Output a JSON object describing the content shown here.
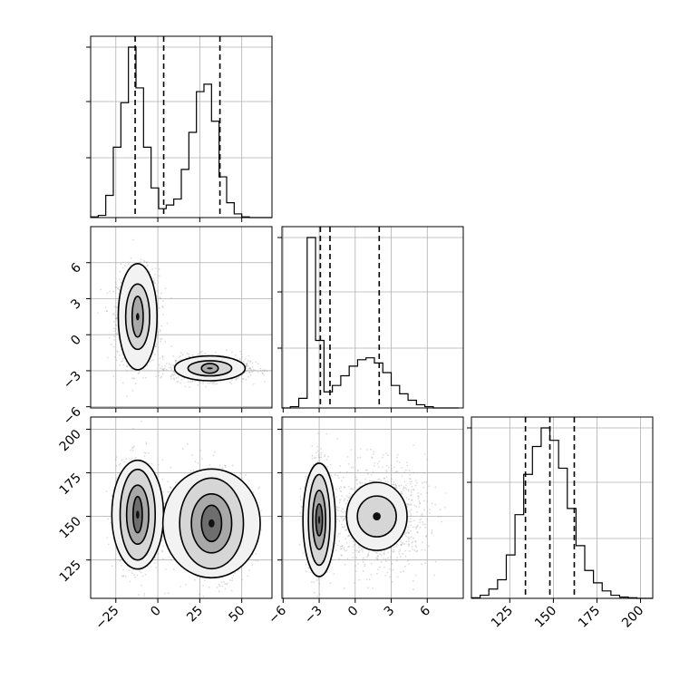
{
  "chart_data": {
    "type": "corner",
    "parameters": [
      {
        "id": "p1",
        "lim": [
          -40,
          68
        ],
        "ticks": [
          -25,
          0,
          25,
          50
        ],
        "tick_labels": [
          "−25",
          "0",
          "25",
          "50"
        ],
        "quantiles": [
          -13.5,
          3.5,
          37
        ],
        "hist": {
          "edges": [
            -40,
            -35.5,
            -31,
            -26.5,
            -22,
            -17.5,
            -13,
            -8.5,
            -4,
            0.5,
            5,
            9.5,
            14,
            18.5,
            23,
            27.5,
            32,
            36.5,
            41,
            45.5,
            50,
            54.5,
            59,
            63.5,
            68
          ],
          "counts": [
            1,
            3,
            30,
            95,
            155,
            230,
            175,
            95,
            40,
            12,
            17,
            25,
            65,
            115,
            170,
            180,
            130,
            55,
            20,
            5,
            1,
            0,
            0,
            0
          ]
        }
      },
      {
        "id": "p2",
        "lim": [
          -6.1,
          9
        ],
        "ticks": [
          -6,
          -3,
          0,
          3,
          6
        ],
        "tick_labels": [
          "−6",
          "−3",
          "0",
          "3",
          "6"
        ],
        "quantiles": [
          -2.9,
          -2.1,
          2.0
        ],
        "hist": {
          "edges": [
            -6.1,
            -5.4,
            -4.7,
            -4.0,
            -3.3,
            -2.6,
            -1.9,
            -1.2,
            -0.5,
            0.2,
            0.9,
            1.6,
            2.3,
            3.0,
            3.7,
            4.4,
            5.1,
            5.8,
            6.5,
            7.2,
            7.9,
            8.6
          ],
          "counts": [
            0,
            2,
            15,
            265,
            105,
            25,
            35,
            50,
            65,
            75,
            78,
            70,
            55,
            35,
            22,
            12,
            5,
            2,
            0,
            0,
            0
          ]
        }
      },
      {
        "id": "p3",
        "lim": [
          103,
          207
        ],
        "ticks": [
          125,
          150,
          175,
          200
        ],
        "tick_labels": [
          "125",
          "150",
          "175",
          "200"
        ],
        "quantiles": [
          134,
          148,
          162
        ],
        "hist": {
          "edges": [
            103,
            108,
            113,
            118,
            123,
            128,
            133,
            138,
            143,
            148,
            153,
            158,
            163,
            168,
            173,
            178,
            183,
            188,
            193,
            198,
            203,
            207
          ],
          "counts": [
            1,
            5,
            15,
            30,
            70,
            135,
            200,
            245,
            275,
            255,
            210,
            145,
            85,
            45,
            25,
            12,
            5,
            2,
            1,
            0,
            0
          ]
        }
      }
    ],
    "joint": [
      {
        "x": "p1",
        "y": "p2",
        "clusters": [
          {
            "mean": [
              -12,
              1.5
            ],
            "sd": [
              5.5,
              1.7
            ],
            "n": 1100,
            "levels": [
              [
                0.6,
                1.0
              ],
              [
                1.3,
                1.6
              ],
              [
                2.1,
                2.6
              ]
            ]
          },
          {
            "mean": [
              31,
              -2.8
            ],
            "sd": [
              10,
              0.45
            ],
            "n": 1100,
            "levels": [
              [
                0.5,
                0.9
              ],
              [
                1.3,
                1.4
              ],
              [
                2.1,
                2.3
              ]
            ]
          }
        ]
      },
      {
        "x": "p1",
        "y": "p3",
        "clusters": [
          {
            "mean": [
              -12,
              151
            ],
            "sd": [
              5.5,
              13
            ],
            "n": 1100,
            "levels": [
              [
                0.5,
                0.8
              ],
              [
                1.2,
                1.3
              ],
              [
                1.9,
                2.0
              ],
              [
                2.8,
                2.4
              ]
            ]
          },
          {
            "mean": [
              32,
              146
            ],
            "sd": [
              10,
              13
            ],
            "n": 1100,
            "levels": [
              [
                0.6,
                0.8
              ],
              [
                1.2,
                1.3
              ],
              [
                1.9,
                2.0
              ],
              [
                2.9,
                2.4
              ]
            ]
          }
        ]
      },
      {
        "x": "p2",
        "y": "p3",
        "clusters": [
          {
            "mean": [
              -3,
              148
            ],
            "sd": [
              0.45,
              13
            ],
            "n": 1100,
            "levels": [
              [
                0.6,
                0.7
              ],
              [
                1.2,
                1.3
              ],
              [
                2.0,
                2.0
              ],
              [
                3.0,
                2.5
              ]
            ]
          },
          {
            "mean": [
              1.8,
              150
            ],
            "sd": [
              1.8,
              13
            ],
            "n": 1100,
            "levels": [
              [
                0.9,
                0.9
              ],
              [
                1.4,
                1.5
              ]
            ]
          }
        ]
      }
    ],
    "grid": true
  }
}
